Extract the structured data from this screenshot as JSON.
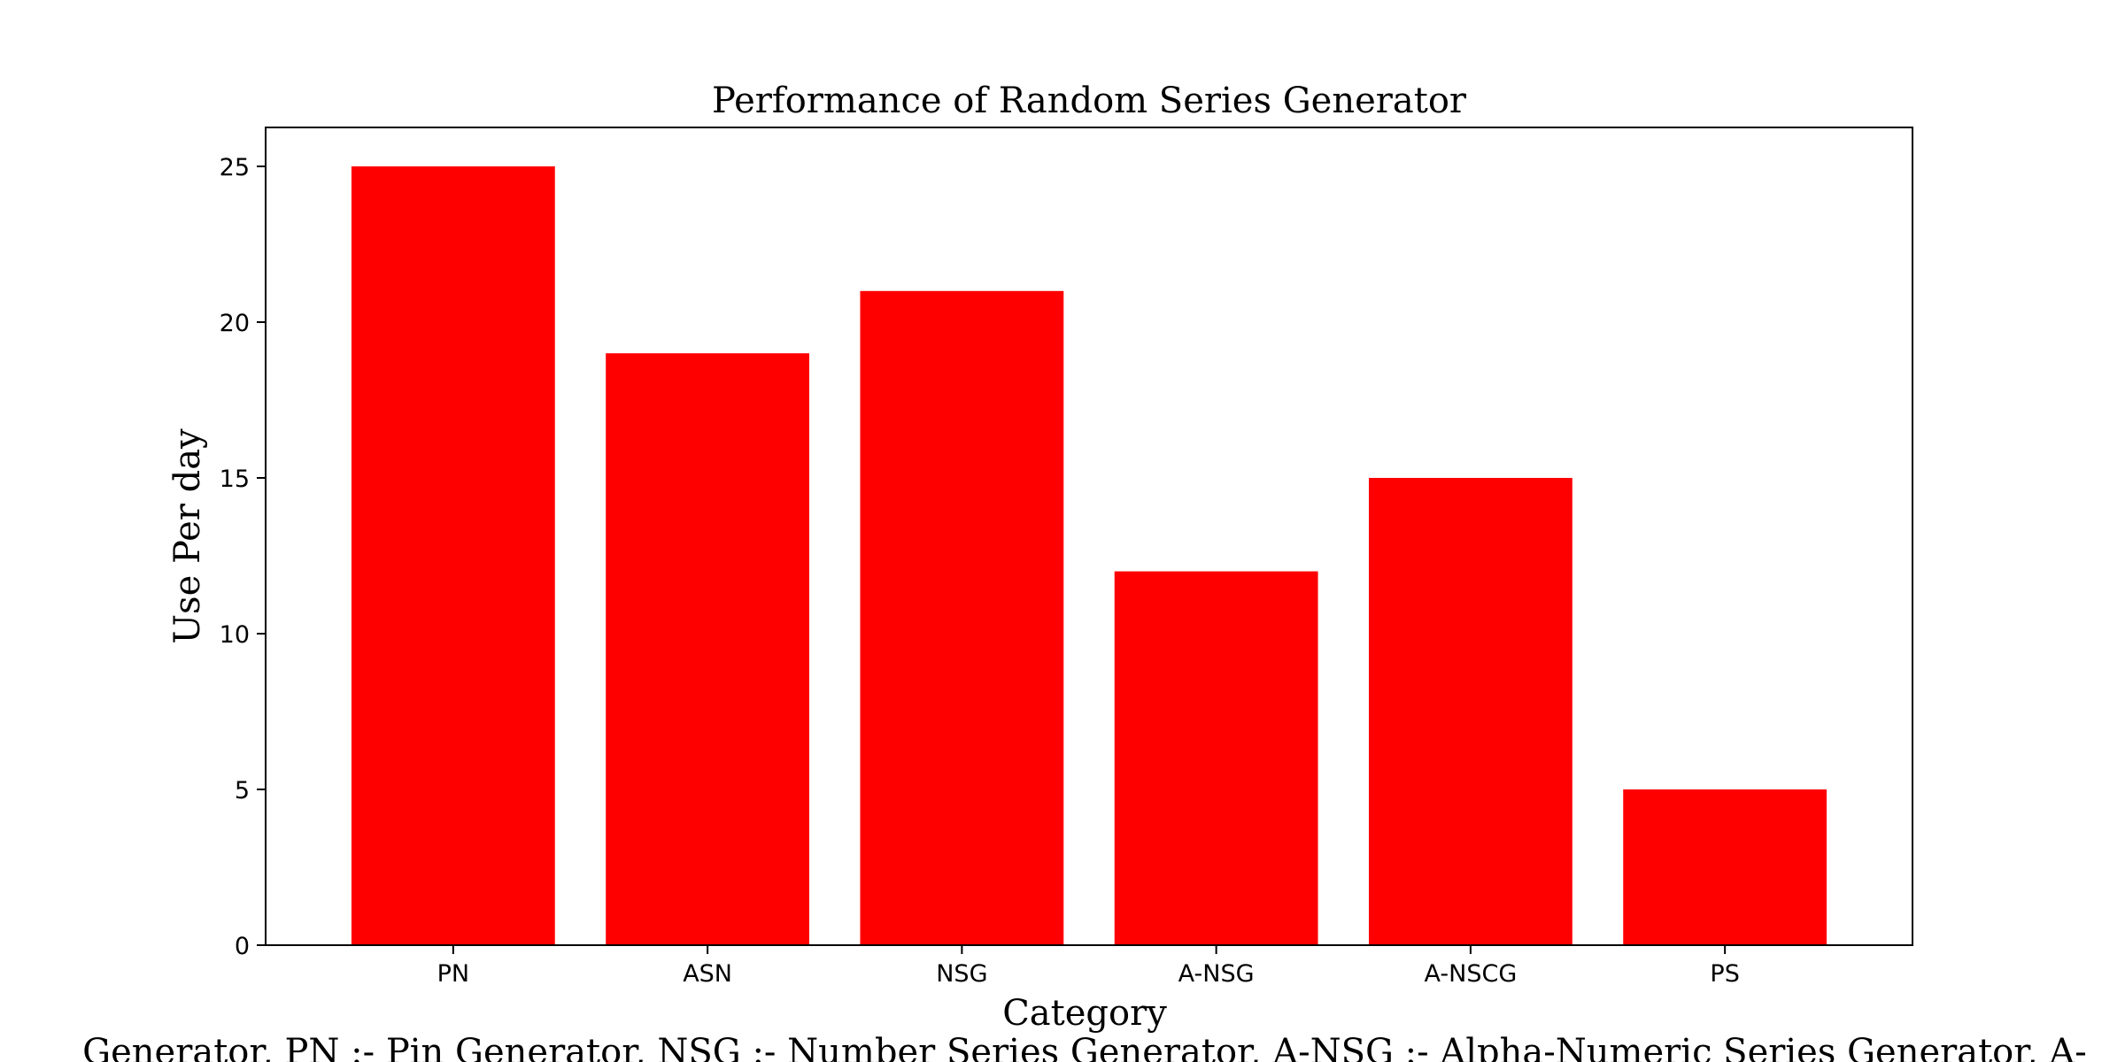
{
  "chart_data": {
    "type": "bar",
    "title": "Performance of Random Series Generator",
    "xlabel": "Category",
    "ylabel": "Use Per day",
    "categories": [
      "PN",
      "ASN",
      "NSG",
      "A-NSG",
      "A-NSCG",
      "PS"
    ],
    "values": [
      25,
      19,
      21,
      12,
      15,
      5
    ],
    "ylim": [
      0,
      26.25
    ],
    "yticks": [
      "0",
      "5",
      "10",
      "15",
      "20",
      "25"
    ],
    "bar_color": "#ff0000",
    "grid": false,
    "caption": "Generator, PN :- Pin Generator, NSG :- Number Series Generator, A-NSG :- Alpha-Numeric Series Generator, A-"
  }
}
